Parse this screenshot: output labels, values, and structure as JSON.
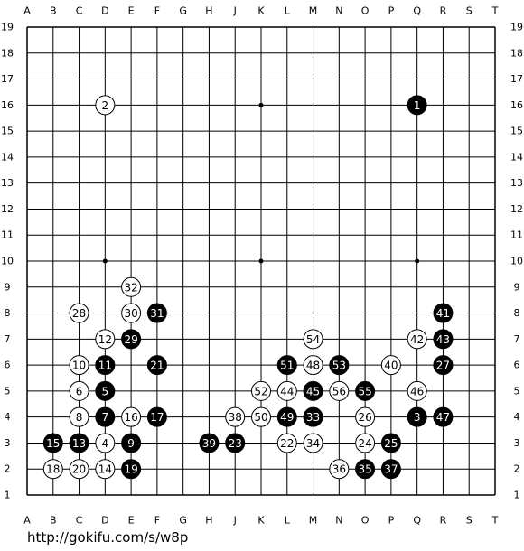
{
  "columns": [
    "A",
    "B",
    "C",
    "D",
    "E",
    "F",
    "G",
    "H",
    "J",
    "K",
    "L",
    "M",
    "N",
    "O",
    "P",
    "Q",
    "R",
    "S",
    "T"
  ],
  "rows": [
    19,
    18,
    17,
    16,
    15,
    14,
    13,
    12,
    11,
    10,
    9,
    8,
    7,
    6,
    5,
    4,
    3,
    2,
    1
  ],
  "stones": [
    {
      "label": "1",
      "color": "black",
      "col": "Q",
      "row": 16
    },
    {
      "label": "2",
      "color": "white",
      "col": "D",
      "row": 16
    },
    {
      "label": "3",
      "color": "black",
      "col": "Q",
      "row": 4
    },
    {
      "label": "4",
      "color": "white",
      "col": "D",
      "row": 3
    },
    {
      "label": "5",
      "color": "black",
      "col": "D",
      "row": 5
    },
    {
      "label": "6",
      "color": "white",
      "col": "C",
      "row": 5
    },
    {
      "label": "7",
      "color": "black",
      "col": "D",
      "row": 4
    },
    {
      "label": "8",
      "color": "white",
      "col": "C",
      "row": 4
    },
    {
      "label": "9",
      "color": "black",
      "col": "E",
      "row": 3
    },
    {
      "label": "10",
      "color": "white",
      "col": "C",
      "row": 6
    },
    {
      "label": "11",
      "color": "black",
      "col": "D",
      "row": 6
    },
    {
      "label": "12",
      "color": "white",
      "col": "D",
      "row": 7
    },
    {
      "label": "13",
      "color": "black",
      "col": "C",
      "row": 3
    },
    {
      "label": "14",
      "color": "white",
      "col": "D",
      "row": 2
    },
    {
      "label": "15",
      "color": "black",
      "col": "B",
      "row": 3
    },
    {
      "label": "16",
      "color": "white",
      "col": "E",
      "row": 4
    },
    {
      "label": "17",
      "color": "black",
      "col": "F",
      "row": 4
    },
    {
      "label": "18",
      "color": "white",
      "col": "B",
      "row": 2
    },
    {
      "label": "19",
      "color": "black",
      "col": "E",
      "row": 2
    },
    {
      "label": "20",
      "color": "white",
      "col": "C",
      "row": 2
    },
    {
      "label": "21",
      "color": "black",
      "col": "F",
      "row": 6
    },
    {
      "label": "22",
      "color": "white",
      "col": "L",
      "row": 3
    },
    {
      "label": "23",
      "color": "black",
      "col": "J",
      "row": 3
    },
    {
      "label": "24",
      "color": "white",
      "col": "O",
      "row": 3
    },
    {
      "label": "25",
      "color": "black",
      "col": "P",
      "row": 3
    },
    {
      "label": "26",
      "color": "white",
      "col": "O",
      "row": 4
    },
    {
      "label": "27",
      "color": "black",
      "col": "R",
      "row": 6
    },
    {
      "label": "28",
      "color": "white",
      "col": "C",
      "row": 8
    },
    {
      "label": "29",
      "color": "black",
      "col": "E",
      "row": 7
    },
    {
      "label": "30",
      "color": "white",
      "col": "E",
      "row": 8
    },
    {
      "label": "31",
      "color": "black",
      "col": "F",
      "row": 8
    },
    {
      "label": "32",
      "color": "white",
      "col": "E",
      "row": 9
    },
    {
      "label": "33",
      "color": "black",
      "col": "M",
      "row": 4
    },
    {
      "label": "34",
      "color": "white",
      "col": "M",
      "row": 3
    },
    {
      "label": "35",
      "color": "black",
      "col": "O",
      "row": 2
    },
    {
      "label": "36",
      "color": "white",
      "col": "N",
      "row": 2
    },
    {
      "label": "37",
      "color": "black",
      "col": "P",
      "row": 2
    },
    {
      "label": "38",
      "color": "white",
      "col": "J",
      "row": 4
    },
    {
      "label": "39",
      "color": "black",
      "col": "H",
      "row": 3
    },
    {
      "label": "40",
      "color": "white",
      "col": "P",
      "row": 6
    },
    {
      "label": "41",
      "color": "black",
      "col": "R",
      "row": 8
    },
    {
      "label": "42",
      "color": "white",
      "col": "Q",
      "row": 7
    },
    {
      "label": "43",
      "color": "black",
      "col": "R",
      "row": 7
    },
    {
      "label": "44",
      "color": "white",
      "col": "L",
      "row": 5
    },
    {
      "label": "45",
      "color": "black",
      "col": "M",
      "row": 5
    },
    {
      "label": "46",
      "color": "white",
      "col": "Q",
      "row": 5
    },
    {
      "label": "47",
      "color": "black",
      "col": "R",
      "row": 4
    },
    {
      "label": "48",
      "color": "white",
      "col": "M",
      "row": 6
    },
    {
      "label": "49",
      "color": "black",
      "col": "L",
      "row": 4
    },
    {
      "label": "50",
      "color": "white",
      "col": "K",
      "row": 4
    },
    {
      "label": "51",
      "color": "black",
      "col": "L",
      "row": 6
    },
    {
      "label": "52",
      "color": "white",
      "col": "K",
      "row": 5
    },
    {
      "label": "53",
      "color": "black",
      "col": "N",
      "row": 6
    },
    {
      "label": "54",
      "color": "white",
      "col": "M",
      "row": 7
    },
    {
      "label": "55",
      "color": "black",
      "col": "O",
      "row": 5
    },
    {
      "label": "56",
      "color": "white",
      "col": "N",
      "row": 5
    }
  ],
  "url": "http://gokifu.com/s/w8p"
}
